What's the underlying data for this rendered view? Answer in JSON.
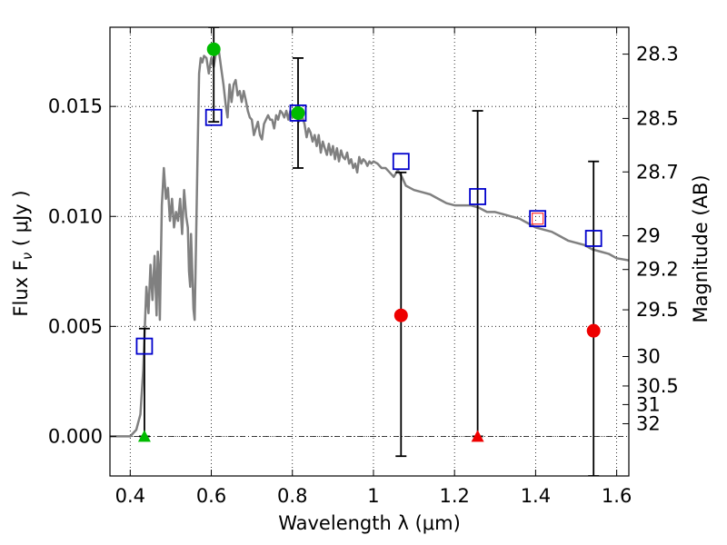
{
  "chart_data": {
    "type": "scatter",
    "xlabel": "Wavelength  λ (μm)",
    "ylabel": "Flux  F",
    "ylabel_sub": "ν",
    "ylabel_units": " ( μJy )",
    "y2label": "Magnitude (AB)",
    "xlim": [
      0.35,
      1.63
    ],
    "ylim": [
      -0.0018,
      0.0186
    ],
    "grid": true,
    "legend": "none",
    "x_ticks": [
      {
        "value": 0.4,
        "label": "0.4"
      },
      {
        "value": 0.6,
        "label": "0.6"
      },
      {
        "value": 0.8,
        "label": "0.8"
      },
      {
        "value": 1.0,
        "label": "1"
      },
      {
        "value": 1.2,
        "label": "1.2"
      },
      {
        "value": 1.4,
        "label": "1.4"
      },
      {
        "value": 1.6,
        "label": "1.6"
      }
    ],
    "y_ticks": [
      {
        "value": 0.0,
        "label": "0.000"
      },
      {
        "value": 0.005,
        "label": "0.005"
      },
      {
        "value": 0.01,
        "label": "0.010"
      },
      {
        "value": 0.015,
        "label": "0.015"
      }
    ],
    "y2_ticks": [
      {
        "mag": 28.3,
        "label": "28.3"
      },
      {
        "mag": 28.5,
        "label": "28.5"
      },
      {
        "mag": 28.7,
        "label": "28.7"
      },
      {
        "mag": 29.0,
        "label": "29"
      },
      {
        "mag": 29.2,
        "label": "29.2"
      },
      {
        "mag": 29.5,
        "label": "29.5"
      },
      {
        "mag": 30.0,
        "label": "30"
      },
      {
        "mag": 30.5,
        "label": "30.5"
      },
      {
        "mag": 31.0,
        "label": "31"
      },
      {
        "mag": 32.0,
        "label": "32"
      }
    ],
    "model_sed": {
      "color": "#808080",
      "points": [
        [
          0.35,
          0.0
        ],
        [
          0.4,
          0.0
        ],
        [
          0.415,
          0.0003
        ],
        [
          0.425,
          0.001
        ],
        [
          0.432,
          0.003
        ],
        [
          0.436,
          0.005
        ],
        [
          0.44,
          0.0068
        ],
        [
          0.445,
          0.0056
        ],
        [
          0.45,
          0.0078
        ],
        [
          0.455,
          0.0062
        ],
        [
          0.46,
          0.0082
        ],
        [
          0.465,
          0.0055
        ],
        [
          0.468,
          0.0084
        ],
        [
          0.47,
          0.0078
        ],
        [
          0.473,
          0.0053
        ],
        [
          0.478,
          0.0105
        ],
        [
          0.483,
          0.0122
        ],
        [
          0.488,
          0.0108
        ],
        [
          0.493,
          0.0113
        ],
        [
          0.498,
          0.0098
        ],
        [
          0.503,
          0.0108
        ],
        [
          0.508,
          0.0095
        ],
        [
          0.513,
          0.0102
        ],
        [
          0.518,
          0.0098
        ],
        [
          0.523,
          0.0108
        ],
        [
          0.528,
          0.0092
        ],
        [
          0.533,
          0.0112
        ],
        [
          0.538,
          0.01
        ],
        [
          0.542,
          0.0095
        ],
        [
          0.545,
          0.0075
        ],
        [
          0.548,
          0.0068
        ],
        [
          0.55,
          0.0092
        ],
        [
          0.553,
          0.0075
        ],
        [
          0.556,
          0.0058
        ],
        [
          0.559,
          0.0053
        ],
        [
          0.562,
          0.0085
        ],
        [
          0.566,
          0.0128
        ],
        [
          0.57,
          0.0165
        ],
        [
          0.574,
          0.0172
        ],
        [
          0.578,
          0.017
        ],
        [
          0.582,
          0.0173
        ],
        [
          0.588,
          0.0172
        ],
        [
          0.594,
          0.0165
        ],
        [
          0.6,
          0.0172
        ],
        [
          0.606,
          0.0168
        ],
        [
          0.612,
          0.0175
        ],
        [
          0.618,
          0.0176
        ],
        [
          0.624,
          0.0168
        ],
        [
          0.63,
          0.016
        ],
        [
          0.636,
          0.015
        ],
        [
          0.64,
          0.0145
        ],
        [
          0.645,
          0.016
        ],
        [
          0.65,
          0.0152
        ],
        [
          0.655,
          0.016
        ],
        [
          0.66,
          0.0162
        ],
        [
          0.665,
          0.0155
        ],
        [
          0.67,
          0.0157
        ],
        [
          0.675,
          0.0152
        ],
        [
          0.68,
          0.0157
        ],
        [
          0.685,
          0.0153
        ],
        [
          0.69,
          0.0148
        ],
        [
          0.695,
          0.0145
        ],
        [
          0.7,
          0.0144
        ],
        [
          0.705,
          0.0137
        ],
        [
          0.71,
          0.014
        ],
        [
          0.715,
          0.0143
        ],
        [
          0.72,
          0.0137
        ],
        [
          0.725,
          0.0135
        ],
        [
          0.73,
          0.0142
        ],
        [
          0.735,
          0.0144
        ],
        [
          0.74,
          0.0146
        ],
        [
          0.745,
          0.0144
        ],
        [
          0.75,
          0.0144
        ],
        [
          0.755,
          0.014
        ],
        [
          0.76,
          0.0146
        ],
        [
          0.765,
          0.0144
        ],
        [
          0.77,
          0.0148
        ],
        [
          0.775,
          0.0147
        ],
        [
          0.78,
          0.0145
        ],
        [
          0.785,
          0.0148
        ],
        [
          0.79,
          0.0144
        ],
        [
          0.795,
          0.0148
        ],
        [
          0.8,
          0.0145
        ],
        [
          0.805,
          0.0146
        ],
        [
          0.81,
          0.0146
        ],
        [
          0.815,
          0.0143
        ],
        [
          0.82,
          0.0144
        ],
        [
          0.825,
          0.0145
        ],
        [
          0.83,
          0.0142
        ],
        [
          0.835,
          0.0136
        ],
        [
          0.84,
          0.014
        ],
        [
          0.845,
          0.0138
        ],
        [
          0.85,
          0.0134
        ],
        [
          0.855,
          0.0137
        ],
        [
          0.86,
          0.0132
        ],
        [
          0.865,
          0.0137
        ],
        [
          0.87,
          0.0129
        ],
        [
          0.875,
          0.0134
        ],
        [
          0.88,
          0.0131
        ],
        [
          0.885,
          0.0128
        ],
        [
          0.89,
          0.0133
        ],
        [
          0.895,
          0.0128
        ],
        [
          0.9,
          0.0132
        ],
        [
          0.905,
          0.0126
        ],
        [
          0.91,
          0.0131
        ],
        [
          0.915,
          0.0125
        ],
        [
          0.92,
          0.013
        ],
        [
          0.925,
          0.0127
        ],
        [
          0.93,
          0.0126
        ],
        [
          0.935,
          0.0129
        ],
        [
          0.94,
          0.0124
        ],
        [
          0.945,
          0.0126
        ],
        [
          0.95,
          0.0122
        ],
        [
          0.955,
          0.0124
        ],
        [
          0.96,
          0.012
        ],
        [
          0.965,
          0.0127
        ],
        [
          0.97,
          0.0124
        ],
        [
          0.975,
          0.0126
        ],
        [
          0.98,
          0.0125
        ],
        [
          0.985,
          0.0123
        ],
        [
          0.99,
          0.0125
        ],
        [
          0.995,
          0.0124
        ],
        [
          1.0,
          0.0125
        ],
        [
          1.01,
          0.0124
        ],
        [
          1.02,
          0.0122
        ],
        [
          1.03,
          0.0122
        ],
        [
          1.04,
          0.012
        ],
        [
          1.05,
          0.0118
        ],
        [
          1.06,
          0.0121
        ],
        [
          1.07,
          0.0118
        ],
        [
          1.08,
          0.0114
        ],
        [
          1.09,
          0.0113
        ],
        [
          1.1,
          0.0112
        ],
        [
          1.12,
          0.0111
        ],
        [
          1.14,
          0.011
        ],
        [
          1.16,
          0.0108
        ],
        [
          1.18,
          0.0106
        ],
        [
          1.2,
          0.0105
        ],
        [
          1.22,
          0.0105
        ],
        [
          1.24,
          0.0105
        ],
        [
          1.26,
          0.0104
        ],
        [
          1.28,
          0.0102
        ],
        [
          1.3,
          0.0102
        ],
        [
          1.32,
          0.0101
        ],
        [
          1.34,
          0.01
        ],
        [
          1.36,
          0.0099
        ],
        [
          1.38,
          0.0097
        ],
        [
          1.4,
          0.0095
        ],
        [
          1.42,
          0.0094
        ],
        [
          1.44,
          0.0093
        ],
        [
          1.46,
          0.0091
        ],
        [
          1.48,
          0.0089
        ],
        [
          1.5,
          0.0088
        ],
        [
          1.52,
          0.0087
        ],
        [
          1.54,
          0.0085
        ],
        [
          1.56,
          0.0084
        ],
        [
          1.58,
          0.0083
        ],
        [
          1.6,
          0.0081
        ],
        [
          1.63,
          0.008
        ]
      ]
    },
    "model_photometry": {
      "marker": "open-square",
      "color": "#0000cc",
      "points": [
        {
          "x": 0.435,
          "y": 0.0041
        },
        {
          "x": 0.606,
          "y": 0.0145
        },
        {
          "x": 0.814,
          "y": 0.0147
        },
        {
          "x": 1.068,
          "y": 0.0125
        },
        {
          "x": 1.257,
          "y": 0.0109
        },
        {
          "x": 1.405,
          "y": 0.0099
        },
        {
          "x": 1.543,
          "y": 0.009
        }
      ]
    },
    "observed": [
      {
        "x": 0.435,
        "y": 0.0,
        "marker": "triangle",
        "color": "#00bb00",
        "err_low": 0.0,
        "err_high": 0.0049
      },
      {
        "x": 0.606,
        "y": 0.0176,
        "marker": "circle",
        "color": "#00bb00",
        "err_low": 0.0143,
        "err_high": 0.0186
      },
      {
        "x": 0.814,
        "y": 0.0147,
        "marker": "circle",
        "color": "#00bb00",
        "err_low": 0.0122,
        "err_high": 0.0172
      },
      {
        "x": 1.068,
        "y": 0.0055,
        "marker": "circle",
        "color": "#ee0000",
        "err_low": -0.0009,
        "err_high": 0.012
      },
      {
        "x": 1.257,
        "y": 0.0,
        "marker": "triangle",
        "color": "#ee0000",
        "err_low": 0.0,
        "err_high": 0.0148
      },
      {
        "x": 1.405,
        "y": 0.0099,
        "marker": "open-square",
        "color": "#ff3333",
        "err_low": null,
        "err_high": null
      },
      {
        "x": 1.543,
        "y": 0.0048,
        "marker": "circle",
        "color": "#ee0000",
        "err_low": -0.0018,
        "err_high": 0.0125
      }
    ],
    "zero_line": {
      "y": 0.0,
      "style": "dash-dot"
    }
  }
}
